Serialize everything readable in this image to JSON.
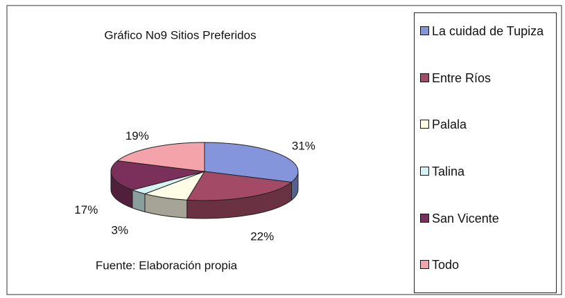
{
  "chart_data": {
    "type": "pie3d",
    "title": "Gráfico No9 Sitios Preferidos",
    "categories": [
      "La cuidad de Tupiza",
      "Entre Ríos",
      "Palala",
      "Talina",
      "San Vicente",
      "Todo"
    ],
    "values": [
      31,
      22,
      8,
      3,
      17,
      19
    ],
    "value_labels": [
      "31%",
      "22%",
      null,
      "3%",
      "17%",
      "19%"
    ],
    "colors": [
      "#8595dc",
      "#a34b66",
      "#fffde6",
      "#d6f3f3",
      "#7b2f5b",
      "#f4a3ab"
    ],
    "annotation": "Fuente: Elaboración propia",
    "legend": "right"
  }
}
